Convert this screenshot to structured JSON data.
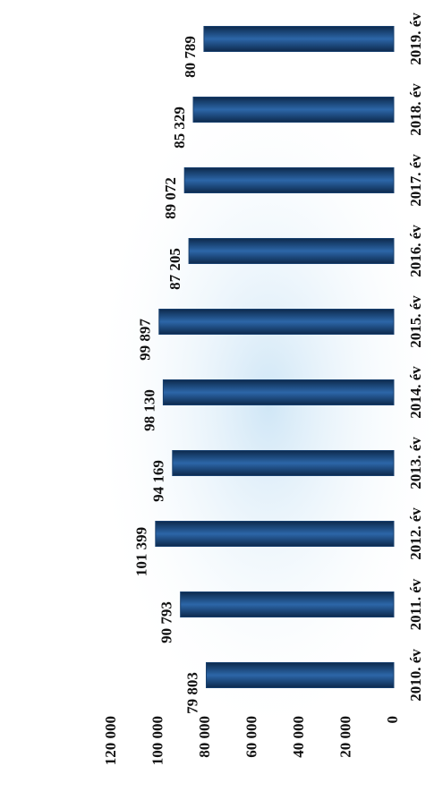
{
  "chart_data": {
    "type": "bar",
    "categories": [
      "2010. év",
      "2011. év",
      "2012. év",
      "2013. év",
      "2014. év",
      "2015. év",
      "2016. év",
      "2017. év",
      "2018. év",
      "2019. év"
    ],
    "values": [
      79803,
      90793,
      101399,
      94169,
      98130,
      99897,
      87205,
      89072,
      85329,
      80789
    ],
    "value_labels": [
      "79 803",
      "90 793",
      "101 399",
      "94 169",
      "98 130",
      "99 897",
      "87 205",
      "89 072",
      "85 329",
      "80 789"
    ],
    "color": "#173f6e",
    "ylim": [
      0,
      120000
    ],
    "yticks": [
      0,
      {
        "value": 20000,
        "label": "20 000"
      },
      {
        "value": 40000,
        "label": "40 000"
      },
      {
        "value": 60000,
        "label": "60 000"
      },
      {
        "value": 80000,
        "label": "80 000"
      },
      {
        "value": 100000,
        "label": "100 000"
      },
      {
        "value": 120000,
        "label": "120 000"
      }
    ]
  }
}
